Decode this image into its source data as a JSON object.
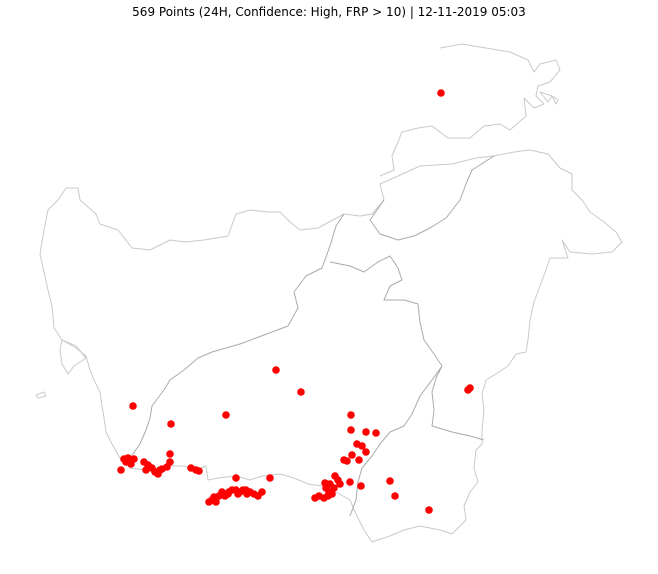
{
  "title": "569 Points (24H, Confidence: High, FRP > 10) | 12-11-2019 05:03",
  "colors": {
    "point": "#ff0000",
    "outline": "#c9c9c9",
    "inner_border": "#aaaaaa",
    "background": "#ffffff"
  }
}
